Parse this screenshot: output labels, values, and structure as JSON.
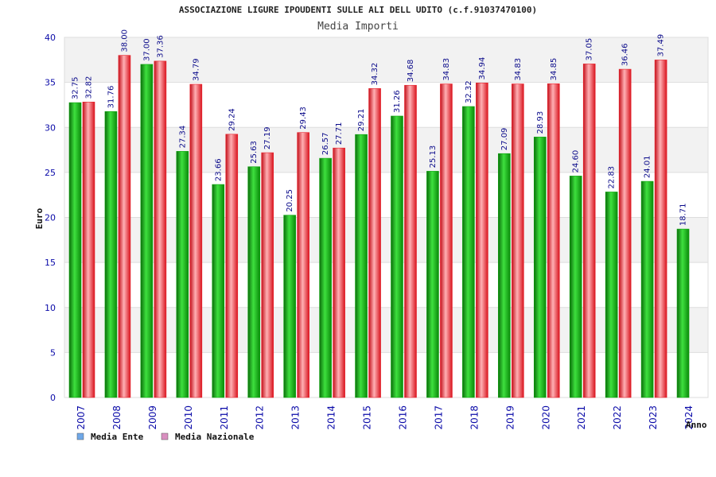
{
  "header": {
    "title": "ASSOCIAZIONE LIGURE IPOUDENTI SULLE ALI DELL UDITO (c.f.91037470100)",
    "subtitle": "Media Importi"
  },
  "colors": {
    "ente": "#0aa40a",
    "nazionale": "#e8202a",
    "legend_ente": "#6fa8e8",
    "legend_nazionale": "#d98fc0",
    "band": "#f2f2f2",
    "tick_text": "#0a0aa8"
  },
  "chart_data": {
    "type": "bar",
    "categories": [
      "2007",
      "2008",
      "2009",
      "2010",
      "2011",
      "2012",
      "2013",
      "2014",
      "2015",
      "2016",
      "2017",
      "2018",
      "2019",
      "2020",
      "2021",
      "2022",
      "2023",
      "2024"
    ],
    "series": [
      {
        "name": "Media Ente",
        "values": [
          32.75,
          31.76,
          37.0,
          27.34,
          23.66,
          25.63,
          20.25,
          26.57,
          29.21,
          31.26,
          25.13,
          32.32,
          27.09,
          28.93,
          24.6,
          22.83,
          24.01,
          18.71
        ],
        "labels": [
          "32.75",
          "31.76",
          "37.00",
          "27.34",
          "23.66",
          "25.63",
          "20.25",
          "26.57",
          "29.21",
          "31.26",
          "25.13",
          "32.32",
          "27.09",
          "28.93",
          "24.60",
          "22.83",
          "24.01",
          "18.71"
        ]
      },
      {
        "name": "Media Nazionale",
        "values": [
          32.82,
          38.0,
          37.36,
          34.79,
          29.24,
          27.19,
          29.43,
          27.71,
          34.32,
          34.68,
          34.83,
          34.94,
          34.83,
          34.85,
          37.05,
          36.46,
          37.49,
          null
        ],
        "labels": [
          "32.82",
          "38.00",
          "37.36",
          "34.79",
          "29.24",
          "27.19",
          "29.43",
          "27.71",
          "34.32",
          "34.68",
          "34.83",
          "34.94",
          "34.83",
          "34.85",
          "37.05",
          "36.46",
          "37.49",
          ""
        ]
      }
    ],
    "ylabel": "Euro",
    "xlabel": "Anno",
    "ylim": [
      0,
      40
    ],
    "yticks": [
      0,
      5,
      10,
      15,
      20,
      25,
      30,
      35,
      40
    ],
    "grid": true,
    "legend_placement": "bottom-left"
  }
}
